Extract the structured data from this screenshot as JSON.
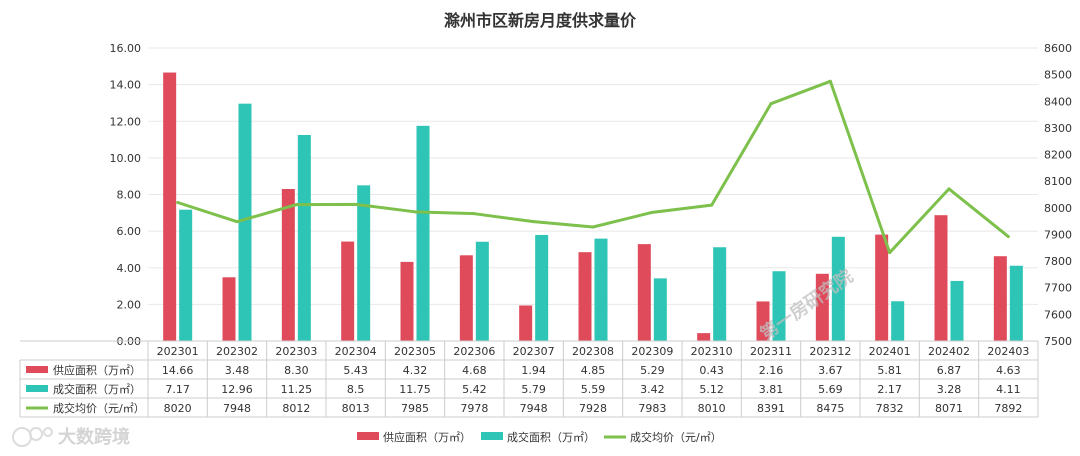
{
  "chart_data": {
    "type": "bar",
    "title": "滁州市区新房月度供求量价",
    "categories": [
      "202301",
      "202302",
      "202303",
      "202304",
      "202305",
      "202306",
      "202307",
      "202308",
      "202309",
      "202310",
      "202311",
      "202312",
      "202401",
      "202402",
      "202403"
    ],
    "series": [
      {
        "name": "供应面积（万㎡）",
        "type": "bar",
        "axis": "left",
        "color": "#E04B5C",
        "values": [
          14.66,
          3.48,
          8.3,
          5.43,
          4.32,
          4.68,
          1.94,
          4.85,
          5.29,
          0.43,
          2.16,
          3.67,
          5.81,
          6.87,
          4.63
        ],
        "labels": [
          "14.66",
          "3.48",
          "8.30",
          "5.43",
          "4.32",
          "4.68",
          "1.94",
          "4.85",
          "5.29",
          "0.43",
          "2.16",
          "3.67",
          "5.81",
          "6.87",
          "4.63"
        ]
      },
      {
        "name": "成交面积（万㎡）",
        "type": "bar",
        "axis": "left",
        "color": "#2EC4B6",
        "values": [
          7.17,
          12.96,
          11.25,
          8.5,
          11.75,
          5.42,
          5.79,
          5.59,
          3.42,
          5.12,
          3.81,
          5.69,
          2.17,
          3.28,
          4.11
        ],
        "labels": [
          "7.17",
          "12.96",
          "11.25",
          "8.5",
          "11.75",
          "5.42",
          "5.79",
          "5.59",
          "3.42",
          "5.12",
          "3.81",
          "5.69",
          "2.17",
          "3.28",
          "4.11"
        ]
      },
      {
        "name": "成交均价（元/㎡）",
        "type": "line",
        "axis": "right",
        "color": "#7DC04B",
        "values": [
          8020,
          7948,
          8012,
          8013,
          7985,
          7978,
          7948,
          7928,
          7983,
          8010,
          8391,
          8475,
          7832,
          8071,
          7892
        ],
        "labels": [
          "8020",
          "7948",
          "8012",
          "8013",
          "7985",
          "7978",
          "7948",
          "7928",
          "7983",
          "8010",
          "8391",
          "8475",
          "7832",
          "8071",
          "7892"
        ]
      }
    ],
    "y_left": {
      "ylim": [
        0,
        16
      ],
      "ticks": [
        "0.00",
        "2.00",
        "4.00",
        "6.00",
        "8.00",
        "10.00",
        "12.00",
        "14.00",
        "16.00"
      ]
    },
    "y_right": {
      "ylim": [
        7500,
        8600
      ],
      "ticks": [
        "7500",
        "7600",
        "7700",
        "7800",
        "7900",
        "8000",
        "8100",
        "8200",
        "8300",
        "8400",
        "8500",
        "8600"
      ]
    },
    "grid": true,
    "legend_position": "bottom",
    "data_table": true
  },
  "watermarks": {
    "diagonal": "第一房研究院",
    "logo": "大数跨境"
  }
}
